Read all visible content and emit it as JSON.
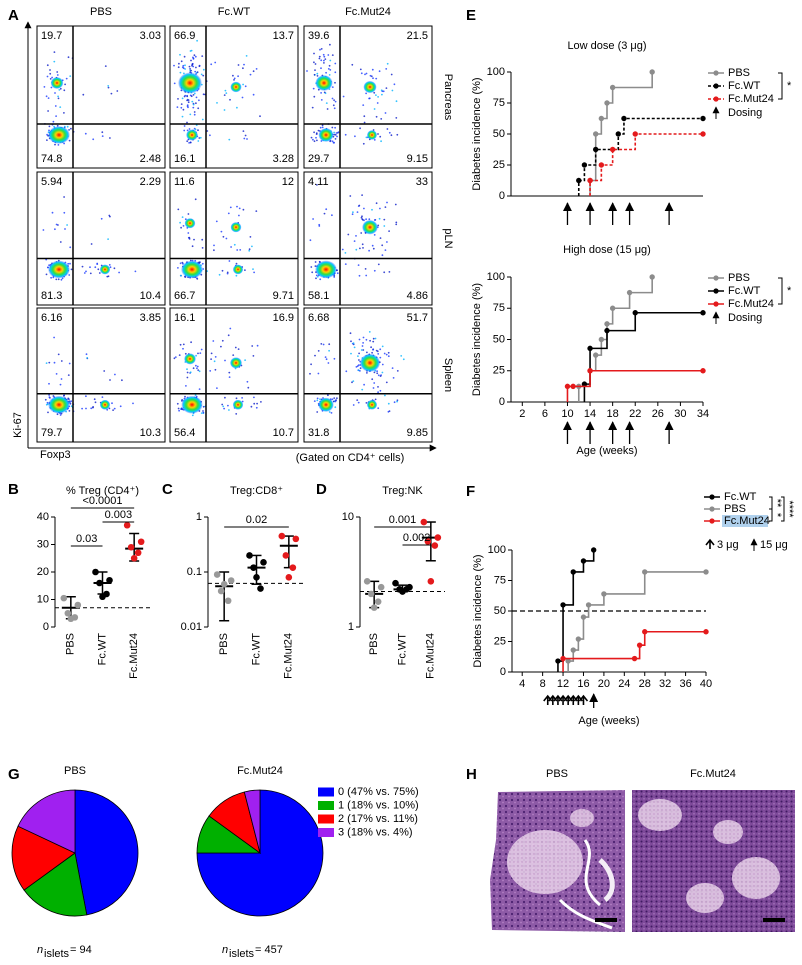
{
  "panel_labels": [
    "A",
    "B",
    "C",
    "D",
    "E",
    "F",
    "G",
    "H"
  ],
  "flow_cytometry": {
    "columns": [
      "PBS",
      "Fc.WT",
      "Fc.Mut24"
    ],
    "rows": [
      "Pancreas",
      "pLN",
      "Spleen"
    ],
    "quadrants": [
      [
        [
          "19.7",
          "3.03",
          "74.8",
          "2.48"
        ],
        [
          "66.9",
          "13.7",
          "16.1",
          "3.28"
        ],
        [
          "39.6",
          "21.5",
          "29.7",
          "9.15"
        ]
      ],
      [
        [
          "5.94",
          "2.29",
          "81.3",
          "10.4"
        ],
        [
          "11.6",
          "12",
          "66.7",
          "9.71"
        ],
        [
          "4.11",
          "33",
          "58.1",
          "4.86"
        ]
      ],
      [
        [
          "6.16",
          "3.85",
          "79.7",
          "10.3"
        ],
        [
          "16.1",
          "16.9",
          "56.4",
          "10.7"
        ],
        [
          "6.68",
          "51.7",
          "31.8",
          "9.85"
        ]
      ]
    ],
    "y_label": "Ki-67",
    "x_label": "Foxp3",
    "gating": "(Gated on CD4⁺ cells)"
  },
  "chart_data": [
    {
      "type": "dot",
      "title": "% Treg (CD4⁺)",
      "categories": [
        "PBS",
        "Fc.WT",
        "Fc.Mut24"
      ],
      "points": [
        [
          10.5,
          8,
          5,
          3.5,
          3
        ],
        [
          20,
          17,
          16,
          12,
          11
        ],
        [
          37,
          31,
          29,
          27,
          25
        ]
      ],
      "colors": [
        "#999999",
        "#000000",
        "#e41a1c"
      ],
      "means": [
        7,
        16,
        28.5
      ],
      "errors": [
        [
          3,
          11
        ],
        [
          12,
          20
        ],
        [
          24,
          34
        ]
      ],
      "reference_line": 7,
      "ylim": [
        0,
        40
      ],
      "yticks": [
        0,
        10,
        20,
        30,
        40
      ],
      "comparisons": [
        {
          "from": "PBS",
          "to": "Fc.Mut24",
          "label": "<0.0001"
        },
        {
          "from": "Fc.WT",
          "to": "Fc.Mut24",
          "label": "0.003"
        },
        {
          "from": "PBS",
          "to": "Fc.WT",
          "label": "0.03"
        }
      ]
    },
    {
      "type": "dot",
      "title": "Treg:CD8⁺",
      "log_scale": true,
      "categories": [
        "PBS",
        "Fc.WT",
        "Fc.Mut24"
      ],
      "points": [
        [
          0.09,
          0.07,
          0.045,
          0.03,
          0.06
        ],
        [
          0.2,
          0.15,
          0.12,
          0.05,
          0.08
        ],
        [
          0.45,
          0.4,
          0.2,
          0.12,
          0.08
        ]
      ],
      "colors": [
        "#999999",
        "#000000",
        "#e41a1c"
      ],
      "means": [
        0.055,
        0.12,
        0.3
      ],
      "errors": [
        [
          0.013,
          0.1
        ],
        [
          0.06,
          0.2
        ],
        [
          0.12,
          0.45
        ]
      ],
      "reference_line": 0.062,
      "ylim": [
        0.01,
        1
      ],
      "yticks": [
        0.01,
        0.1,
        1
      ],
      "comparisons": [
        {
          "from": "PBS",
          "to": "Fc.Mut24",
          "label": "0.02"
        }
      ]
    },
    {
      "type": "dot",
      "title": "Treg:NK",
      "log_scale": true,
      "categories": [
        "PBS",
        "Fc.WT",
        "Fc.Mut24"
      ],
      "points": [
        [
          2.6,
          2.3,
          2.0,
          1.7,
          1.5
        ],
        [
          2.5,
          2.3,
          2.2,
          2.2,
          2.1
        ],
        [
          9,
          6.5,
          6,
          5.5,
          2.6
        ]
      ],
      "colors": [
        "#999999",
        "#000000",
        "#e41a1c"
      ],
      "means": [
        2.0,
        2.2,
        6.5
      ],
      "errors": [
        [
          1.5,
          2.6
        ],
        [
          2.1,
          2.4
        ],
        [
          4,
          9
        ]
      ],
      "reference_line": 2.1,
      "ylim": [
        1,
        10
      ],
      "yticks": [
        1,
        10
      ],
      "comparisons": [
        {
          "from": "PBS",
          "to": "Fc.Mut24",
          "label": "0.001"
        },
        {
          "from": "Fc.WT",
          "to": "Fc.Mut24",
          "label": "0.002"
        }
      ]
    },
    {
      "type": "step",
      "title": "Low dose (3 μg)",
      "y_label": "Diabetes incidence (%)",
      "xlim": [
        0,
        34
      ],
      "ylim": [
        0,
        100
      ],
      "yticks": [
        0,
        25,
        50,
        75,
        100
      ],
      "series": [
        {
          "name": "PBS",
          "color": "#8c8c8c",
          "dash": false,
          "x": [
            14,
            15,
            16,
            17,
            18,
            25
          ],
          "values": [
            12.5,
            50,
            62.5,
            75,
            87.5,
            100
          ]
        },
        {
          "name": "Fc.WT",
          "color": "#000000",
          "dash": true,
          "x": [
            12,
            13,
            15,
            19,
            20,
            34
          ],
          "values": [
            12.5,
            25,
            37.5,
            50,
            62.5,
            62.5
          ]
        },
        {
          "name": "Fc.Mut24",
          "color": "#e41a1c",
          "dash": true,
          "x": [
            14,
            16,
            18,
            22,
            34
          ],
          "values": [
            12.5,
            25,
            37.5,
            50,
            50
          ]
        }
      ],
      "dosing": [
        10,
        14,
        18,
        21,
        28
      ],
      "dosing_label": "Dosing",
      "significance": "*"
    },
    {
      "type": "step",
      "title": "High dose (15 μg)",
      "y_label": "Diabetes incidence (%)",
      "x_label": "Age (weeks)",
      "xlim": [
        0,
        34
      ],
      "xticks": [
        2,
        6,
        10,
        14,
        18,
        22,
        26,
        30,
        34
      ],
      "ylim": [
        0,
        100
      ],
      "yticks": [
        0,
        25,
        50,
        75,
        100
      ],
      "series": [
        {
          "name": "PBS",
          "color": "#8c8c8c",
          "dash": false,
          "x": [
            12,
            14,
            15,
            16,
            17,
            18,
            21,
            25
          ],
          "values": [
            12.5,
            25,
            37.5,
            50,
            62.5,
            75,
            87.5,
            100
          ]
        },
        {
          "name": "Fc.WT",
          "color": "#000000",
          "dash": false,
          "x": [
            13,
            14,
            17,
            22,
            34
          ],
          "values": [
            14.3,
            42.9,
            57.1,
            71.4,
            71.4
          ]
        },
        {
          "name": "Fc.Mut24",
          "color": "#e41a1c",
          "dash": false,
          "x": [
            10,
            11,
            14,
            34
          ],
          "values": [
            12.5,
            12.5,
            25,
            25
          ]
        }
      ],
      "dosing": [
        10,
        14,
        18,
        21,
        28
      ],
      "dosing_label": "Dosing",
      "significance": "*"
    },
    {
      "type": "step",
      "y_label": "Diabetes incidence (%)",
      "x_label": "Age (weeks)",
      "xlim": [
        2,
        40
      ],
      "xticks": [
        4,
        8,
        12,
        16,
        20,
        24,
        28,
        32,
        36,
        40
      ],
      "ylim": [
        0,
        100
      ],
      "yticks": [
        0,
        25,
        50,
        75,
        100
      ],
      "reference_line": 50,
      "series": [
        {
          "name": "Fc.WT",
          "color": "#000000",
          "dash": false,
          "x": [
            11,
            12,
            14,
            16,
            18
          ],
          "values": [
            9,
            55,
            82,
            91,
            100
          ]
        },
        {
          "name": "PBS",
          "color": "#8c8c8c",
          "dash": false,
          "x": [
            13,
            14,
            15,
            16,
            17,
            20,
            28,
            40
          ],
          "values": [
            9,
            18,
            27,
            45,
            55,
            64,
            82,
            82
          ]
        },
        {
          "name": "Fc.Mut24",
          "color": "#e41a1c",
          "dash": false,
          "x": [
            12,
            26,
            27,
            28,
            40
          ],
          "values": [
            11,
            11,
            22,
            33,
            33
          ]
        }
      ],
      "dosing_low": [
        9,
        10,
        11,
        12,
        13,
        14,
        15,
        16
      ],
      "dosing_low_label": "3 μg",
      "dosing_high": [
        18
      ],
      "dosing_high_label": "15 μg",
      "significance": [
        "**",
        "*",
        "****"
      ]
    },
    {
      "type": "pie",
      "series": [
        {
          "name": "PBS",
          "values": [
            47,
            18,
            17,
            18
          ]
        },
        {
          "name": "Fc.Mut24",
          "values": [
            75,
            10,
            11,
            4
          ]
        }
      ],
      "categories": [
        "0 (47% vs. 75%)",
        "1 (18% vs. 10%)",
        "2 (17% vs. 11%)",
        "3 (18% vs. 4%)"
      ],
      "colors": [
        "#0000ff",
        "#00b000",
        "#ff0000",
        "#a020f0"
      ],
      "sample_sizes": [
        {
          "symbol": "n",
          "subscript": "islets",
          "text": "= 94"
        },
        {
          "symbol": "n",
          "subscript": "islets",
          "text": "= 457"
        }
      ]
    }
  ],
  "histology": {
    "titles": [
      "PBS",
      "Fc.Mut24"
    ]
  }
}
